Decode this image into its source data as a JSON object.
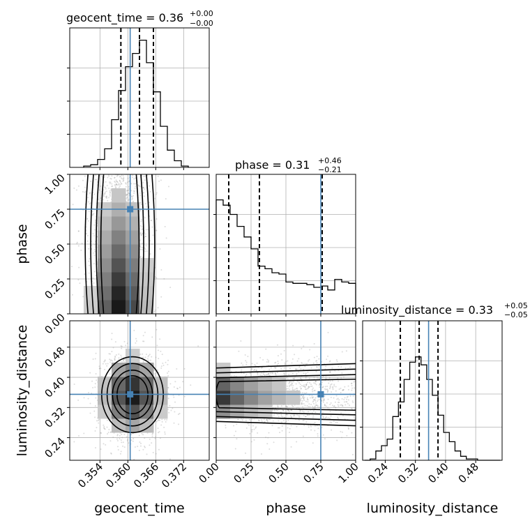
{
  "chart_data": {
    "type": "corner",
    "parameters": [
      "geocent_time",
      "phase",
      "luminosity_distance"
    ],
    "truths": {
      "geocent_time": 0.3605,
      "phase": 0.75,
      "luminosity_distance": 0.355
    },
    "ranges": {
      "geocent_time": [
        0.3475,
        0.3775
      ],
      "phase": [
        0.0,
        1.0
      ],
      "luminosity_distance": [
        0.18,
        0.55
      ]
    },
    "tick_labels": {
      "geocent_time": [
        "0.354",
        "0.360",
        "0.366",
        "0.372"
      ],
      "phase": [
        "0.00",
        "0.25",
        "0.50",
        "0.75",
        "1.00"
      ],
      "luminosity_distance": [
        "0.24",
        "0.32",
        "0.40",
        "0.48"
      ]
    },
    "titles": [
      {
        "param": "geocent_time",
        "main": "geocent_time = 0.36",
        "sup": "+0.00",
        "sub": "−0.00"
      },
      {
        "param": "phase",
        "main": "phase = 0.31",
        "sup": "+0.46",
        "sub": "−0.21"
      },
      {
        "param": "luminosity_distance",
        "main": "luminosity_distance = 0.33",
        "sup": "+0.05",
        "sub": "−0.05"
      }
    ],
    "quantiles": {
      "geocent_time": [
        0.3585,
        0.3625,
        0.3655
      ],
      "phase": [
        0.09,
        0.31,
        0.76
      ],
      "luminosity_distance": [
        0.28,
        0.33,
        0.38
      ]
    },
    "histograms": {
      "geocent_time": {
        "edges": [
          0.3505,
          0.352,
          0.3535,
          0.355,
          0.3565,
          0.358,
          0.3595,
          0.361,
          0.3625,
          0.364,
          0.3655,
          0.367,
          0.3685,
          0.37,
          0.3715,
          0.373
        ],
        "counts": [
          0.01,
          0.02,
          0.06,
          0.14,
          0.36,
          0.58,
          0.76,
          0.86,
          0.96,
          0.79,
          0.57,
          0.31,
          0.13,
          0.05,
          0.01
        ]
      },
      "phase": {
        "edges": [
          0.0,
          0.05,
          0.1,
          0.15,
          0.2,
          0.25,
          0.3,
          0.35,
          0.4,
          0.45,
          0.5,
          0.55,
          0.6,
          0.65,
          0.7,
          0.75,
          0.8,
          0.85,
          0.9,
          0.95,
          1.0
        ],
        "counts": [
          0.86,
          0.82,
          0.75,
          0.66,
          0.58,
          0.49,
          0.36,
          0.34,
          0.31,
          0.3,
          0.24,
          0.23,
          0.23,
          0.22,
          0.2,
          0.21,
          0.18,
          0.26,
          0.24,
          0.23
        ]
      },
      "luminosity_distance": {
        "edges": [
          0.185,
          0.2,
          0.215,
          0.23,
          0.245,
          0.26,
          0.275,
          0.29,
          0.305,
          0.32,
          0.335,
          0.35,
          0.365,
          0.38,
          0.395,
          0.41,
          0.425,
          0.44,
          0.455,
          0.47,
          0.485,
          0.5,
          0.515,
          0.53,
          0.545
        ],
        "counts": [
          0.0,
          0.01,
          0.07,
          0.11,
          0.16,
          0.33,
          0.44,
          0.61,
          0.74,
          0.78,
          0.72,
          0.61,
          0.49,
          0.34,
          0.21,
          0.14,
          0.07,
          0.03,
          0.01,
          0.01,
          0.0,
          0.0,
          0.0,
          0.0
        ]
      }
    },
    "grid": true,
    "colors": {
      "truth": "#4682b4",
      "hist": "#000000",
      "contour": "#000000",
      "points": "#9a9a9a",
      "grid": "#b0b0b0"
    }
  }
}
